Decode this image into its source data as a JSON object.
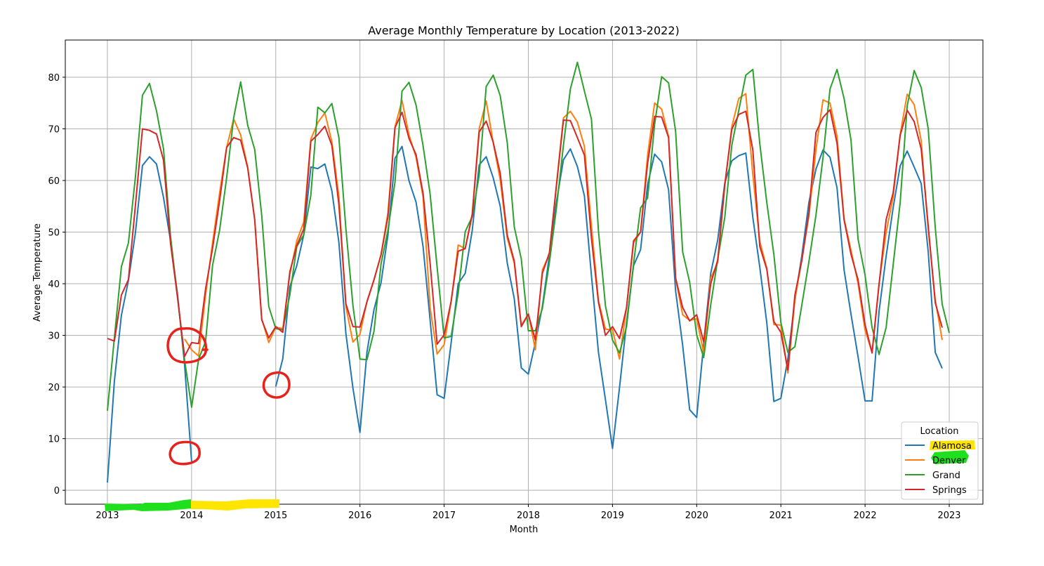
{
  "chart_data": {
    "type": "line",
    "title": "Average Monthly Temperature by Location (2013-2022)",
    "xlabel": "Month",
    "ylabel": "Average Temperature",
    "xlim": [
      2012.5,
      2023.4
    ],
    "ylim": [
      -2.7,
      87.2
    ],
    "xticks": [
      "2013",
      "2014",
      "2015",
      "2016",
      "2017",
      "2018",
      "2019",
      "2020",
      "2021",
      "2022",
      "2023"
    ],
    "yticks": [
      "0",
      "10",
      "20",
      "30",
      "40",
      "50",
      "60",
      "70",
      "80"
    ],
    "grid": true,
    "legend": {
      "title": "Location",
      "position": "lower-right"
    },
    "series": [
      {
        "name": "Alamosa",
        "color": "#1f77b4",
        "segments": [
          {
            "start_month": 0,
            "values": [
              1.5,
              21.1,
              33.9,
              40.6,
              49.9,
              62.9,
              64.6,
              63.2,
              56.7,
              48.3,
              37.9,
              24.3,
              5.6
            ]
          },
          {
            "start_month": 24,
            "values": [
              20.1,
              25.5,
              39.4,
              43.5,
              49.5,
              62.6,
              62.3,
              63.2,
              58.0,
              48.0,
              30.3,
              19.8,
              11.2,
              26.8,
              35.0,
              40.2,
              49.5,
              64.3,
              66.6,
              59.9,
              55.8,
              47.2,
              33.0,
              18.5,
              17.8,
              28.6,
              40.0,
              42.0,
              50.3,
              63.0,
              64.6,
              60.5,
              55.0,
              44.0,
              37.1,
              23.7,
              22.5,
              28.6,
              35.6,
              45.5,
              55.8,
              64.0,
              66.1,
              62.7,
              57.0,
              41.6,
              26.7,
              17.5,
              8.1,
              19.9,
              32.4,
              43.5,
              46.6,
              59.2,
              65.1,
              63.6,
              58.2,
              38.6,
              28.1,
              15.6,
              14.1,
              28.4,
              42.0,
              48.5,
              59.5,
              63.8,
              64.8,
              65.3,
              52.8,
              43.2,
              32.4,
              17.2,
              17.8,
              25.5,
              36.8,
              45.6,
              55.8,
              62.2,
              65.9,
              64.5,
              58.6,
              42.7,
              34.1,
              25.9,
              17.3,
              17.3,
              34.7,
              45.3,
              54.7,
              62.8,
              65.7,
              62.6,
              59.4,
              46.2,
              26.7,
              23.6
            ]
          }
        ]
      },
      {
        "name": "Denver",
        "color": "#ff7f0e",
        "segments": [
          {
            "start_month": 11,
            "values": [
              29.3,
              27.2,
              26.0,
              37.8,
              48.0,
              57.6,
              66.4,
              71.9,
              68.8,
              62.6,
              52.4,
              33.2,
              28.6,
              31.6,
              31.3,
              41.8,
              48.3,
              52.0,
              68.0,
              71.2,
              73.1,
              67.5,
              56.9,
              35.5,
              28.7,
              30.2,
              36.6,
              40.7,
              45.6,
              53.8,
              70.4,
              75.5,
              68.8,
              64.5,
              56.8,
              35.4,
              26.4,
              28.2,
              36.6,
              47.5,
              46.8,
              53.6,
              70.0,
              75.4,
              67.3,
              60.1,
              48.8,
              44.0,
              31.9,
              34.2,
              27.2,
              42.7,
              45.7,
              59.2,
              72.1,
              73.4,
              71.3,
              66.6,
              51.2,
              36.7,
              31.2,
              31.1,
              25.4,
              35.4,
              47.9,
              50.0,
              64.9,
              75.0,
              73.8,
              68.5,
              41.0,
              34.0,
              32.9,
              33.2,
              26.6,
              41.1,
              44.1,
              58.9,
              70.4,
              75.9,
              76.8,
              61.1,
              48.2,
              43.0,
              32.1,
              32.0,
              22.7,
              36.9,
              44.8,
              53.2,
              66.0,
              75.6,
              75.0,
              68.6,
              52.6,
              46.5,
              40.1,
              31.0,
              26.7,
              40.1,
              49.9,
              56.8,
              68.9,
              76.7,
              74.7,
              67.7,
              50.5,
              36.9,
              29.1
            ]
          }
        ]
      },
      {
        "name": "Grand",
        "color": "#2ca02c",
        "segments": [
          {
            "start_month": 0,
            "values": [
              15.4,
              29.5,
              43.3,
              47.9,
              60.7,
              76.5,
              78.8,
              73.5,
              66.1,
              49.2,
              37.3,
              25.2,
              16.1,
              25.4,
              28.8,
              43.6,
              50.4,
              60.5,
              72.1,
              79.1,
              70.7,
              66.0,
              53.2,
              35.6,
              31.3,
              31.1,
              37.8,
              47.2,
              49.5,
              57.1,
              74.2,
              73.1,
              74.9,
              68.3,
              50.6,
              35.8,
              25.4,
              25.3,
              30.8,
              43.8,
              50.4,
              59.7,
              77.3,
              79.0,
              74.6,
              66.7,
              57.4,
              43.2,
              29.5,
              29.8,
              38.2,
              50.1,
              53.0,
              61.0,
              78.2,
              80.4,
              76.4,
              67.3,
              51.0,
              44.8,
              30.9,
              30.9,
              35.2,
              44.1,
              54.6,
              66.8,
              77.7,
              82.9,
              77.3,
              71.9,
              50.2,
              35.7,
              29.1,
              26.6,
              31.7,
              43.9,
              54.7,
              56.6,
              70.9,
              80.1,
              78.9,
              69.5,
              46.2,
              40.3,
              30.1,
              25.7,
              35.9,
              44.8,
              52.8,
              66.8,
              73.6,
              80.4,
              81.5,
              67.1,
              55.7,
              45.7,
              32.5,
              26.7,
              27.8,
              36.0,
              44.3,
              53.3,
              64.4,
              77.7,
              81.5,
              75.9,
              67.8,
              48.7,
              41.7,
              31.5,
              26.3,
              31.5,
              43.6,
              55.7,
              74.4,
              81.3,
              78.0,
              70.0,
              50.9,
              36.0,
              30.5
            ]
          }
        ]
      },
      {
        "name": "Springs",
        "color": "#d62728",
        "segments": [
          {
            "start_month": 0,
            "values": [
              29.4,
              28.9,
              37.8,
              40.8,
              55.2,
              70.0,
              69.7,
              69.0,
              63.9,
              47.8,
              37.3,
              25.9,
              28.6,
              28.4,
              39.0,
              46.9,
              56.1,
              66.4,
              68.3,
              67.8,
              62.4,
              52.4,
              33.0,
              29.5,
              31.7,
              30.6,
              42.3,
              47.4,
              50.6,
              67.6,
              68.9,
              70.5,
              66.8,
              55.3,
              36.1,
              31.7,
              31.6,
              36.5,
              40.8,
              45.6,
              53.0,
              70.2,
              73.2,
              68.1,
              65.0,
              57.5,
              44.0,
              28.3,
              30.1,
              36.6,
              46.3,
              46.8,
              53.3,
              69.4,
              71.5,
              67.4,
              61.4,
              49.4,
              44.4,
              31.7,
              34.1,
              29.1,
              42.0,
              46.0,
              58.9,
              71.7,
              71.6,
              68.3,
              64.9,
              48.8,
              36.4,
              30.0,
              31.7,
              29.4,
              35.4,
              48.3,
              50.0,
              63.3,
              72.4,
              72.3,
              68.3,
              41.1,
              35.4,
              32.8,
              34.0,
              28.7,
              40.0,
              44.6,
              59.2,
              69.9,
              72.8,
              73.4,
              65.9,
              47.2,
              42.8,
              32.7,
              30.6,
              23.3,
              37.8,
              44.6,
              53.8,
              69.3,
              72.2,
              73.7,
              67.2,
              52.4,
              45.7,
              40.8,
              32.1,
              26.6,
              39.9,
              52.4,
              57.6,
              68.7,
              73.6,
              71.4,
              66.1,
              51.2,
              36.3,
              31.5
            ]
          }
        ]
      }
    ]
  },
  "annotations": [
    {
      "kind": "red-ellipse",
      "color": "#e8211d"
    },
    {
      "kind": "red-ellipse",
      "color": "#e8211d"
    },
    {
      "kind": "red-ellipse",
      "color": "#e8211d"
    },
    {
      "kind": "green-highlight",
      "color": "#1fe01f"
    },
    {
      "kind": "yellow-highlight",
      "color": "#ffe500"
    },
    {
      "kind": "yellow-highlight-legend",
      "color": "#ffe500"
    },
    {
      "kind": "green-highlight-legend",
      "color": "#1fe01f"
    }
  ]
}
